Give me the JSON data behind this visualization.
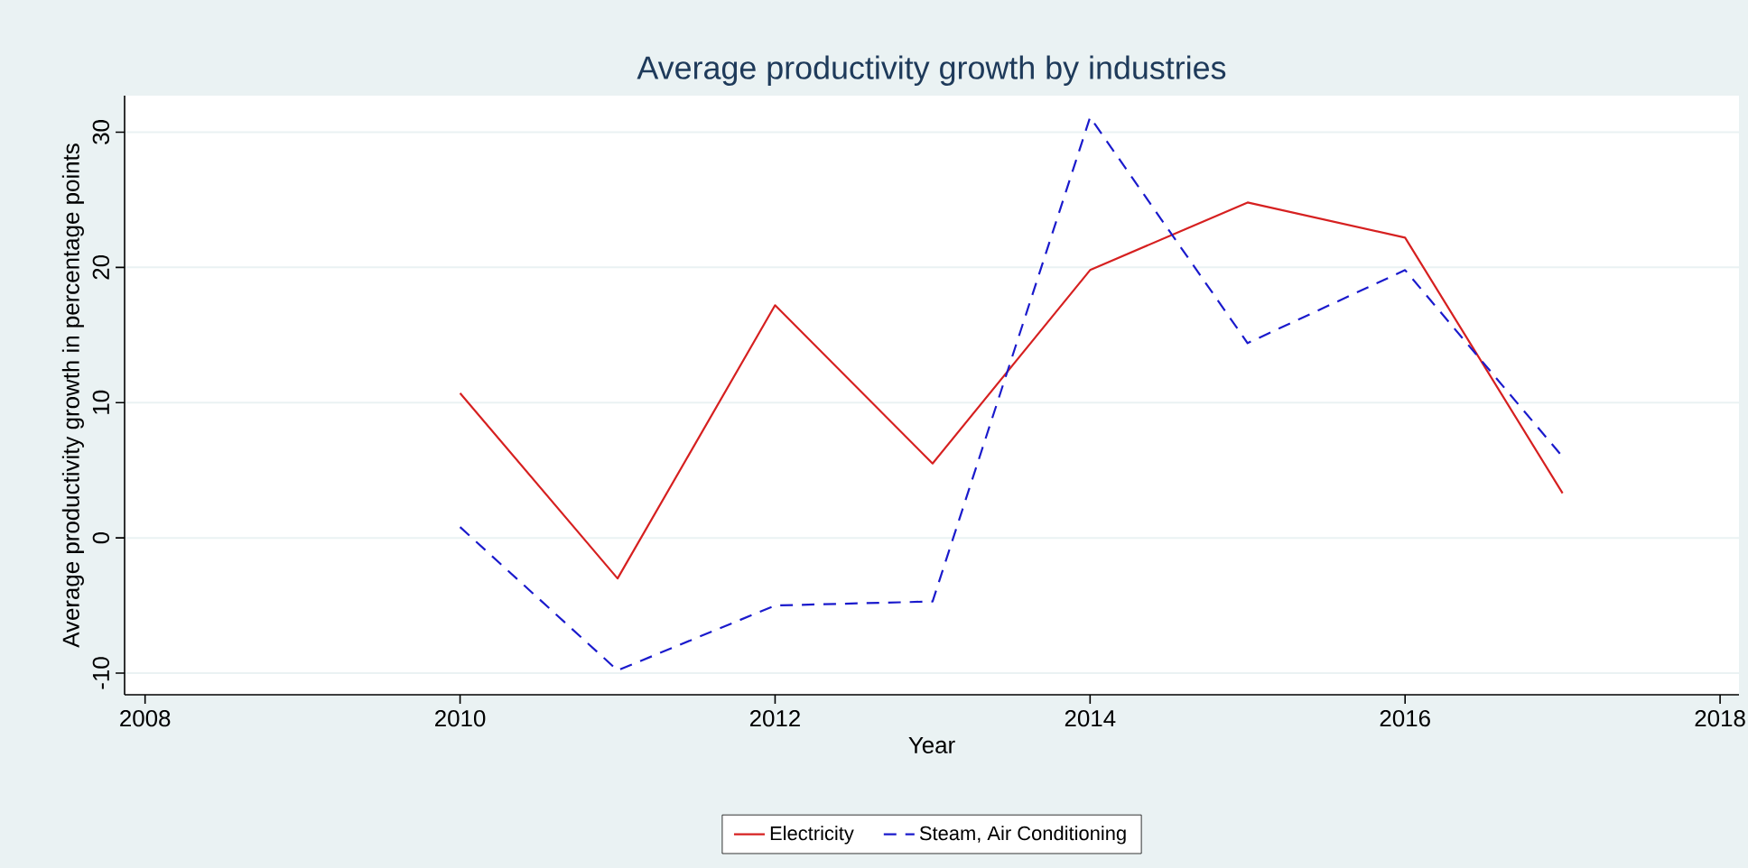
{
  "chart_data": {
    "type": "line",
    "title": "Average productivity growth by industries",
    "xlabel": "Year",
    "ylabel": "Average productivity growth in percentage points",
    "x": [
      2010,
      2011,
      2012,
      2013,
      2014,
      2015,
      2016,
      2017
    ],
    "series": [
      {
        "name": "Electricity",
        "color": "#d62020",
        "line_style": "solid",
        "values": [
          10.7,
          -3.0,
          17.2,
          5.5,
          19.8,
          24.8,
          22.2,
          3.3
        ]
      },
      {
        "name": "Steam, Air Conditioning",
        "color": "#1a1acc",
        "line_style": "dashed",
        "values": [
          0.8,
          -9.8,
          -5.0,
          -4.7,
          31.1,
          14.4,
          19.8,
          6.0
        ]
      }
    ],
    "xlim": [
      2007.87,
      2018.12
    ],
    "ylim": [
      -11.6,
      32.7
    ],
    "xticks": [
      2008,
      2010,
      2012,
      2014,
      2016,
      2018
    ],
    "yticks": [
      -10,
      0,
      10,
      20,
      30
    ],
    "grid": "y",
    "legend": "bottom",
    "marker": "none"
  }
}
